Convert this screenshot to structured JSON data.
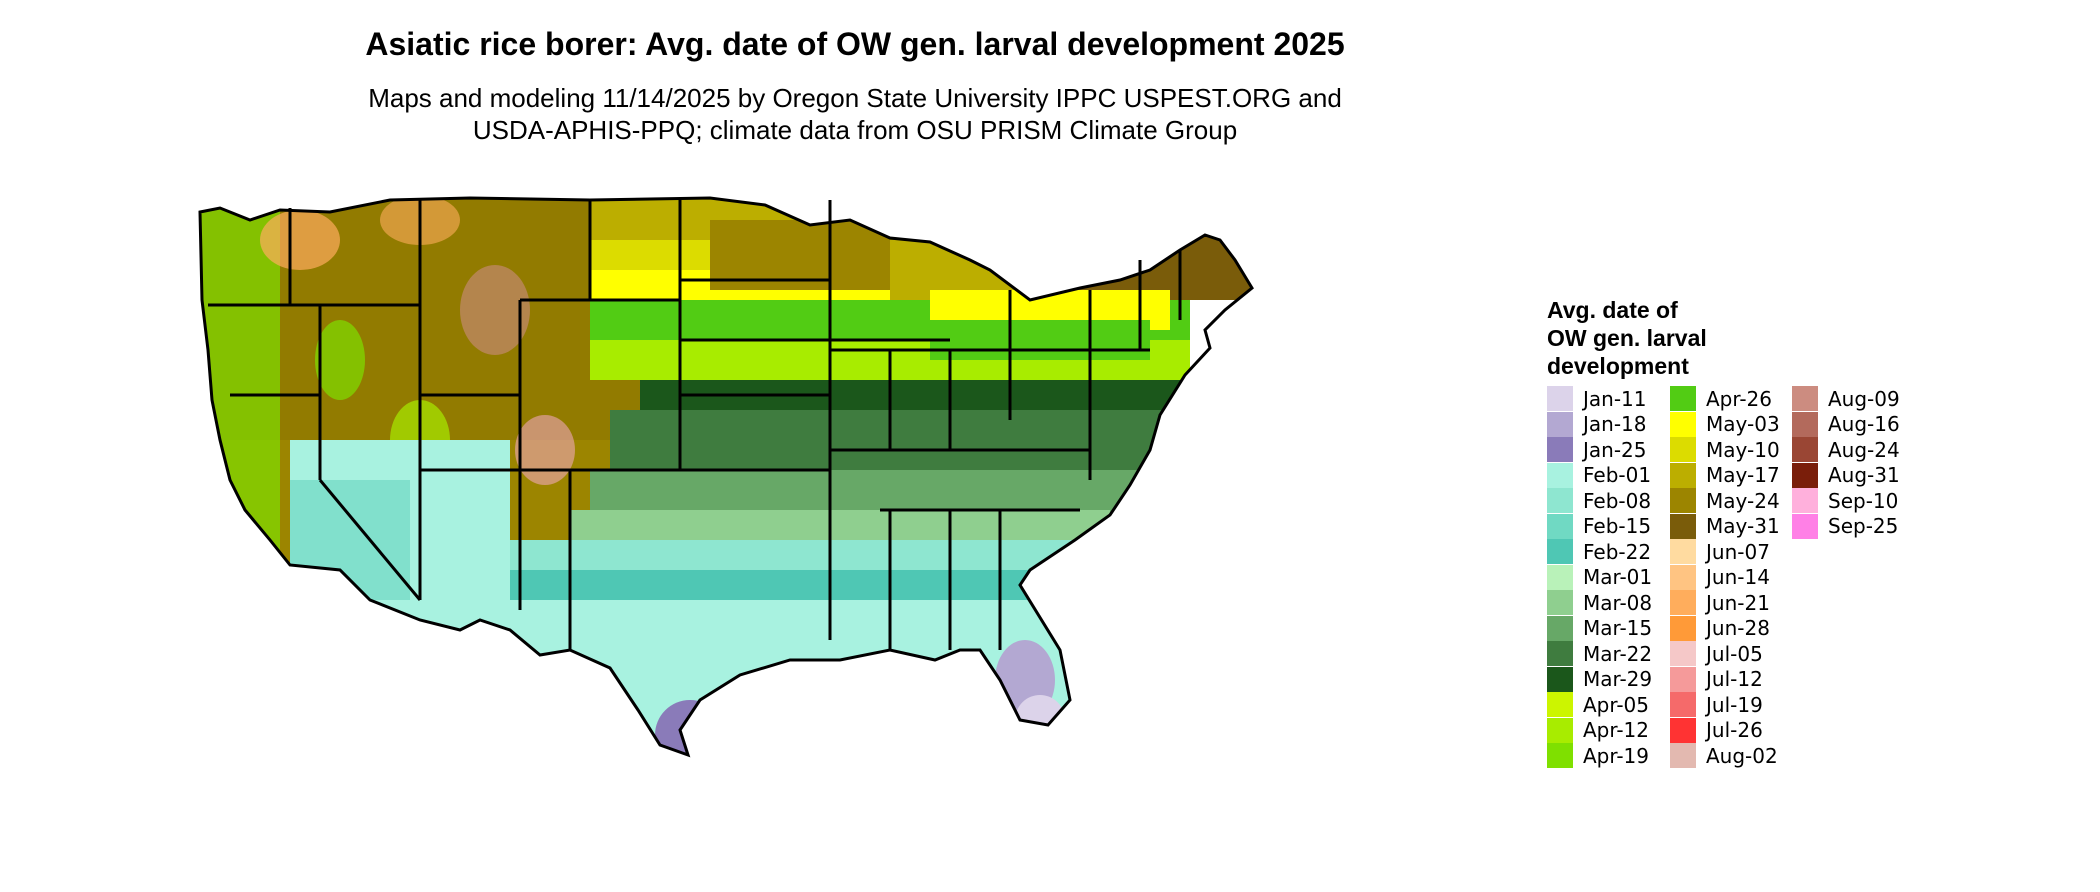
{
  "title": "Asiatic rice borer: Avg. date of OW gen. larval development 2025",
  "subtitle_line1": "Maps and modeling 11/14/2025 by Oregon State University IPPC USPEST.ORG and",
  "subtitle_line2": "USDA-APHIS-PPQ; climate data from OSU PRISM Climate Group",
  "legend": {
    "title_line1": "Avg. date of",
    "title_line2": "OW gen. larval",
    "title_line3": "development",
    "columns": [
      [
        {
          "label": "Jan-11",
          "color": "#dcd3ea"
        },
        {
          "label": "Jan-18",
          "color": "#b3a8d2"
        },
        {
          "label": "Jan-25",
          "color": "#8a7bb9"
        },
        {
          "label": "Feb-01",
          "color": "#a8f2e0"
        },
        {
          "label": "Feb-08",
          "color": "#8ee6d0"
        },
        {
          "label": "Feb-15",
          "color": "#70d9c3"
        },
        {
          "label": "Feb-22",
          "color": "#4fc7b4"
        },
        {
          "label": "Mar-01",
          "color": "#b9f2b9"
        },
        {
          "label": "Mar-08",
          "color": "#8fcf8f"
        },
        {
          "label": "Mar-15",
          "color": "#67a867"
        },
        {
          "label": "Mar-22",
          "color": "#3f7c3f"
        },
        {
          "label": "Mar-29",
          "color": "#1b571b"
        },
        {
          "label": "Apr-05",
          "color": "#ccf500"
        },
        {
          "label": "Apr-12",
          "color": "#a8ec00"
        },
        {
          "label": "Apr-19",
          "color": "#7fe000"
        }
      ],
      [
        {
          "label": "Apr-26",
          "color": "#52cc14"
        },
        {
          "label": "May-03",
          "color": "#ffff00"
        },
        {
          "label": "May-10",
          "color": "#dcdc00"
        },
        {
          "label": "May-17",
          "color": "#bcae00"
        },
        {
          "label": "May-24",
          "color": "#9c8500"
        },
        {
          "label": "May-31",
          "color": "#7a5c0a"
        },
        {
          "label": "Jun-07",
          "color": "#ffdba0"
        },
        {
          "label": "Jun-14",
          "color": "#ffc482"
        },
        {
          "label": "Jun-21",
          "color": "#ffad5c"
        },
        {
          "label": "Jun-28",
          "color": "#ff9a38"
        },
        {
          "label": "Jul-05",
          "color": "#f5c8c8"
        },
        {
          "label": "Jul-12",
          "color": "#f59a9a"
        },
        {
          "label": "Jul-19",
          "color": "#f56a6a"
        },
        {
          "label": "Jul-26",
          "color": "#ff3333"
        },
        {
          "label": "Aug-02",
          "color": "#e3b9b0"
        }
      ],
      [
        {
          "label": "Aug-09",
          "color": "#cc8c80"
        },
        {
          "label": "Aug-16",
          "color": "#b36a5c"
        },
        {
          "label": "Aug-24",
          "color": "#9a4634"
        },
        {
          "label": "Aug-31",
          "color": "#7a1e0a"
        },
        {
          "label": "Sep-10",
          "color": "#ffb0dc"
        },
        {
          "label": "Sep-25",
          "color": "#ff80e6"
        }
      ]
    ]
  }
}
